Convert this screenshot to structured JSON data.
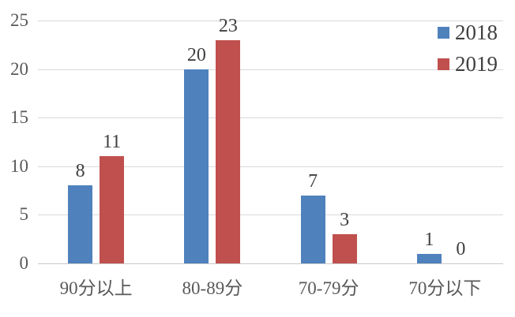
{
  "chart_data": {
    "type": "bar",
    "title": "",
    "xlabel": "",
    "ylabel": "",
    "categories": [
      "90分以上",
      "80-89分",
      "70-79分",
      "70分以下"
    ],
    "series": [
      {
        "name": "2018",
        "color": "#4F81BD",
        "values": [
          8,
          20,
          7,
          1
        ]
      },
      {
        "name": "2019",
        "color": "#C0504D",
        "values": [
          11,
          23,
          3,
          0
        ]
      }
    ],
    "yticks": [
      0,
      5,
      10,
      15,
      20,
      25
    ],
    "ylim": [
      0,
      25
    ],
    "grid": true,
    "data_labels": true,
    "legend_position": "top-right"
  },
  "colors": {
    "background": "#FFFFFF",
    "gridline": "#D9D9D9",
    "axis_line": "#C9C9C9",
    "tick_label": "#595959",
    "category_label": "#595959",
    "data_label": "#3F3F3F",
    "legend_label": "#404040"
  }
}
